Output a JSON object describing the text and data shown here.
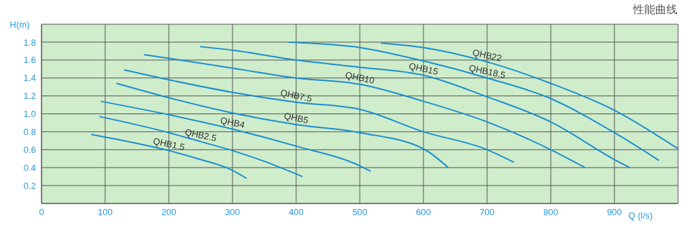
{
  "chart_data": {
    "type": "line",
    "title": "性能曲线",
    "xlabel": "Q (l/s)",
    "ylabel": "H(m)",
    "xlim": [
      0,
      1000
    ],
    "ylim": [
      0,
      2
    ],
    "xticks": [
      0,
      100,
      200,
      300,
      400,
      500,
      600,
      700,
      800,
      900,
      {
        "value": 1000,
        "label": null
      }
    ],
    "yticks": [
      {
        "value": 0,
        "label": null
      },
      0.2,
      0.4,
      0.6,
      0.8,
      {
        "value": 1,
        "label": "1.0"
      },
      1.2,
      1.4,
      1.6,
      1.8,
      {
        "value": 2,
        "label": null
      }
    ],
    "grid": true,
    "marker": "none",
    "line_style": "solid",
    "series": [
      {
        "name": "QHB1.5",
        "color": "#1a8fd0",
        "x": [
          78,
          150,
          200,
          250,
          300,
          322
        ],
        "values": [
          0.77,
          0.67,
          0.59,
          0.49,
          0.37,
          0.28
        ]
      },
      {
        "name": "QHB2.5",
        "color": "#1a8fd0",
        "x": [
          91,
          200,
          250,
          300,
          350,
          410
        ],
        "values": [
          0.97,
          0.79,
          0.69,
          0.59,
          0.47,
          0.3
        ]
      },
      {
        "name": "QHB4",
        "color": "#1a8fd0",
        "x": [
          93,
          200,
          300,
          400,
          500,
          517
        ],
        "values": [
          1.14,
          0.99,
          0.83,
          0.64,
          0.42,
          0.36
        ]
      },
      {
        "name": "QHB5",
        "color": "#1a8fd0",
        "x": [
          118,
          200,
          300,
          400,
          500,
          600,
          639
        ],
        "values": [
          1.34,
          1.18,
          1.01,
          0.88,
          0.79,
          0.61,
          0.4
        ]
      },
      {
        "name": "QHB7.5",
        "color": "#1a8fd0",
        "x": [
          130,
          200,
          300,
          400,
          500,
          600,
          700,
          742
        ],
        "values": [
          1.49,
          1.38,
          1.24,
          1.13,
          1.05,
          0.8,
          0.6,
          0.46
        ]
      },
      {
        "name": "QHB10",
        "color": "#1a8fd0",
        "x": [
          161,
          200,
          300,
          400,
          500,
          600,
          700,
          800,
          854
        ],
        "values": [
          1.66,
          1.62,
          1.51,
          1.4,
          1.33,
          1.14,
          0.91,
          0.6,
          0.4
        ]
      },
      {
        "name": "QHB15",
        "color": "#1a8fd0",
        "x": [
          249,
          300,
          400,
          500,
          600,
          700,
          800,
          900,
          924
        ],
        "values": [
          1.75,
          1.71,
          1.6,
          1.52,
          1.43,
          1.19,
          0.91,
          0.49,
          0.4
        ]
      },
      {
        "name": "QHB18.5",
        "color": "#1a8fd0",
        "x": [
          388,
          500,
          600,
          700,
          800,
          900,
          970
        ],
        "values": [
          1.8,
          1.74,
          1.59,
          1.4,
          1.17,
          0.79,
          0.48
        ]
      },
      {
        "name": "QHB22",
        "color": "#1a8fd0",
        "x": [
          533,
          600,
          700,
          800,
          900,
          1000
        ],
        "values": [
          1.79,
          1.74,
          1.58,
          1.34,
          1.04,
          0.61
        ]
      }
    ]
  }
}
